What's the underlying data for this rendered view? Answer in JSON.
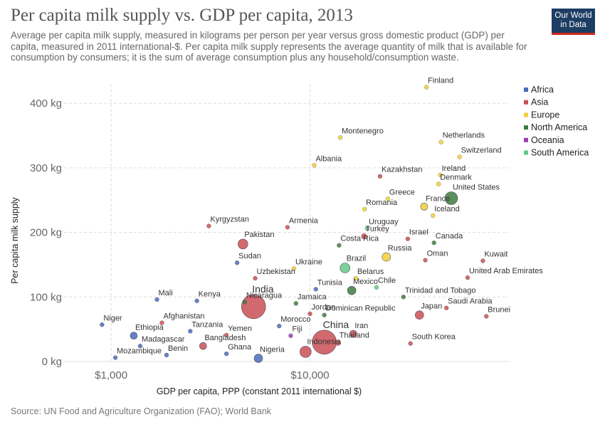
{
  "header": {
    "title": "Per capita milk supply vs. GDP per capita, 2013",
    "subtitle": "Average per capita milk supply, measured in kilograms per person per year versus gross domestic product (GDP) per capita, measured in 2011 international-$. Per capita milk supply represents the average quantity of milk that is available for consumption by consumers; it is the sum of average consumption plus any household/consumption waste.",
    "logo_line1": "Our World",
    "logo_line2": "in Data"
  },
  "footer": {
    "source": "Source: UN Food and Agriculture Organization (FAO); World Bank"
  },
  "colors": {
    "Africa": "#4a6bbd",
    "Asia": "#c94f56",
    "Europe": "#f1ce3a",
    "North America": "#3e7b3e",
    "Oceania": "#9a3fb0",
    "South America": "#64c98a"
  },
  "chart_data": {
    "type": "scatter",
    "title": "Per capita milk supply vs. GDP per capita, 2013",
    "xlabel": "GDP per capita, PPP (constant 2011 international $)",
    "ylabel": "Per capita milk supply",
    "x_scale": "log",
    "xlim": [
      580,
      100000
    ],
    "ylim": [
      0,
      430
    ],
    "x_ticks": [
      {
        "value": 1000,
        "label": "$1,000"
      },
      {
        "value": 10000,
        "label": "$10,000"
      }
    ],
    "y_ticks": [
      {
        "value": 0,
        "label": "0 kg"
      },
      {
        "value": 100,
        "label": "100 kg"
      },
      {
        "value": 200,
        "label": "200 kg"
      },
      {
        "value": 300,
        "label": "300 kg"
      },
      {
        "value": 400,
        "label": "400 kg"
      }
    ],
    "grid": true,
    "legend_position": "right",
    "legend": [
      "Africa",
      "Asia",
      "Europe",
      "North America",
      "Oceania",
      "South America"
    ],
    "points": [
      {
        "name": "Finland",
        "region": "Europe",
        "x": 38500,
        "y": 425
      },
      {
        "name": "Montenegro",
        "region": "Europe",
        "x": 14200,
        "y": 347
      },
      {
        "name": "Netherlands",
        "region": "Europe",
        "x": 45600,
        "y": 340
      },
      {
        "name": "Switzerland",
        "region": "Europe",
        "x": 56500,
        "y": 317
      },
      {
        "name": "Albania",
        "region": "Europe",
        "x": 10500,
        "y": 304
      },
      {
        "name": "Kazakhstan",
        "region": "Asia",
        "x": 22500,
        "y": 287
      },
      {
        "name": "Ireland",
        "region": "Europe",
        "x": 45200,
        "y": 289
      },
      {
        "name": "Denmark",
        "region": "Europe",
        "x": 44300,
        "y": 275
      },
      {
        "name": "United States",
        "region": "North America",
        "x": 51300,
        "y": 253
      },
      {
        "name": "Greece",
        "region": "Europe",
        "x": 24600,
        "y": 252
      },
      {
        "name": "France",
        "region": "Europe",
        "x": 37500,
        "y": 240
      },
      {
        "name": "Romania",
        "region": "Europe",
        "x": 18800,
        "y": 236
      },
      {
        "name": "Iceland",
        "region": "Europe",
        "x": 41500,
        "y": 226
      },
      {
        "name": "Kyrgyzstan",
        "region": "Asia",
        "x": 3100,
        "y": 210
      },
      {
        "name": "Armenia",
        "region": "Asia",
        "x": 7700,
        "y": 208
      },
      {
        "name": "Uruguay",
        "region": "South America",
        "x": 19400,
        "y": 206
      },
      {
        "name": "Turkey",
        "region": "Asia",
        "x": 18700,
        "y": 194
      },
      {
        "name": "Israel",
        "region": "Asia",
        "x": 31000,
        "y": 190
      },
      {
        "name": "Canada",
        "region": "North America",
        "x": 42000,
        "y": 184
      },
      {
        "name": "Pakistan",
        "region": "Asia",
        "x": 4600,
        "y": 182
      },
      {
        "name": "Costa Rica",
        "region": "North America",
        "x": 14000,
        "y": 180
      },
      {
        "name": "Russia",
        "region": "Europe",
        "x": 24200,
        "y": 162
      },
      {
        "name": "Oman",
        "region": "Asia",
        "x": 38000,
        "y": 157
      },
      {
        "name": "Kuwait",
        "region": "Asia",
        "x": 74000,
        "y": 156
      },
      {
        "name": "Sudan",
        "region": "Africa",
        "x": 4300,
        "y": 153
      },
      {
        "name": "Brazil",
        "region": "South America",
        "x": 15000,
        "y": 145
      },
      {
        "name": "Ukraine",
        "region": "Europe",
        "x": 8300,
        "y": 144
      },
      {
        "name": "Uzbekistan",
        "region": "Asia",
        "x": 5300,
        "y": 129
      },
      {
        "name": "Belarus",
        "region": "Europe",
        "x": 17000,
        "y": 129
      },
      {
        "name": "United Arab Emirates",
        "region": "Asia",
        "x": 62000,
        "y": 130
      },
      {
        "name": "Tunisia",
        "region": "Africa",
        "x": 10700,
        "y": 112
      },
      {
        "name": "Mexico",
        "region": "North America",
        "x": 16200,
        "y": 110
      },
      {
        "name": "Chile",
        "region": "South America",
        "x": 21600,
        "y": 115
      },
      {
        "name": "Trinidad and Tobago",
        "region": "North America",
        "x": 29500,
        "y": 100
      },
      {
        "name": "Mali",
        "region": "Africa",
        "x": 1700,
        "y": 96
      },
      {
        "name": "Kenya",
        "region": "Africa",
        "x": 2700,
        "y": 94
      },
      {
        "name": "India",
        "region": "Asia",
        "x": 5200,
        "y": 85
      },
      {
        "name": "Nicaragua",
        "region": "North America",
        "x": 4700,
        "y": 92
      },
      {
        "name": "Jamaica",
        "region": "North America",
        "x": 8500,
        "y": 90
      },
      {
        "name": "Saudi Arabia",
        "region": "Asia",
        "x": 48500,
        "y": 83
      },
      {
        "name": "Japan",
        "region": "Asia",
        "x": 35500,
        "y": 72
      },
      {
        "name": "Brunei",
        "region": "Asia",
        "x": 77000,
        "y": 70
      },
      {
        "name": "Jordan",
        "region": "Asia",
        "x": 10000,
        "y": 74
      },
      {
        "name": "Dominican Republic",
        "region": "North America",
        "x": 11800,
        "y": 72
      },
      {
        "name": "Afghanistan",
        "region": "Asia",
        "x": 1800,
        "y": 60
      },
      {
        "name": "Niger",
        "region": "Africa",
        "x": 900,
        "y": 57
      },
      {
        "name": "Morocco",
        "region": "Africa",
        "x": 7000,
        "y": 55
      },
      {
        "name": "China",
        "region": "Asia",
        "x": 11800,
        "y": 30
      },
      {
        "name": "Ethiopia",
        "region": "Africa",
        "x": 1300,
        "y": 40
      },
      {
        "name": "Tanzania",
        "region": "Africa",
        "x": 2500,
        "y": 47
      },
      {
        "name": "Yemen",
        "region": "Asia",
        "x": 3800,
        "y": 41
      },
      {
        "name": "Iran",
        "region": "Asia",
        "x": 16500,
        "y": 43
      },
      {
        "name": "Fiji",
        "region": "Oceania",
        "x": 8000,
        "y": 40
      },
      {
        "name": "Thailand",
        "region": "Asia",
        "x": 13800,
        "y": 29
      },
      {
        "name": "South Korea",
        "region": "Asia",
        "x": 32000,
        "y": 28
      },
      {
        "name": "Madagascar",
        "region": "Africa",
        "x": 1400,
        "y": 24
      },
      {
        "name": "Bangladesh",
        "region": "Asia",
        "x": 2900,
        "y": 24
      },
      {
        "name": "Indonesia",
        "region": "Asia",
        "x": 9500,
        "y": 15
      },
      {
        "name": "Nigeria",
        "region": "Africa",
        "x": 5500,
        "y": 5
      },
      {
        "name": "Ghana",
        "region": "Africa",
        "x": 3800,
        "y": 12
      },
      {
        "name": "Mozambique",
        "region": "Africa",
        "x": 1050,
        "y": 6
      },
      {
        "name": "Benin",
        "region": "Africa",
        "x": 1900,
        "y": 10
      }
    ]
  }
}
